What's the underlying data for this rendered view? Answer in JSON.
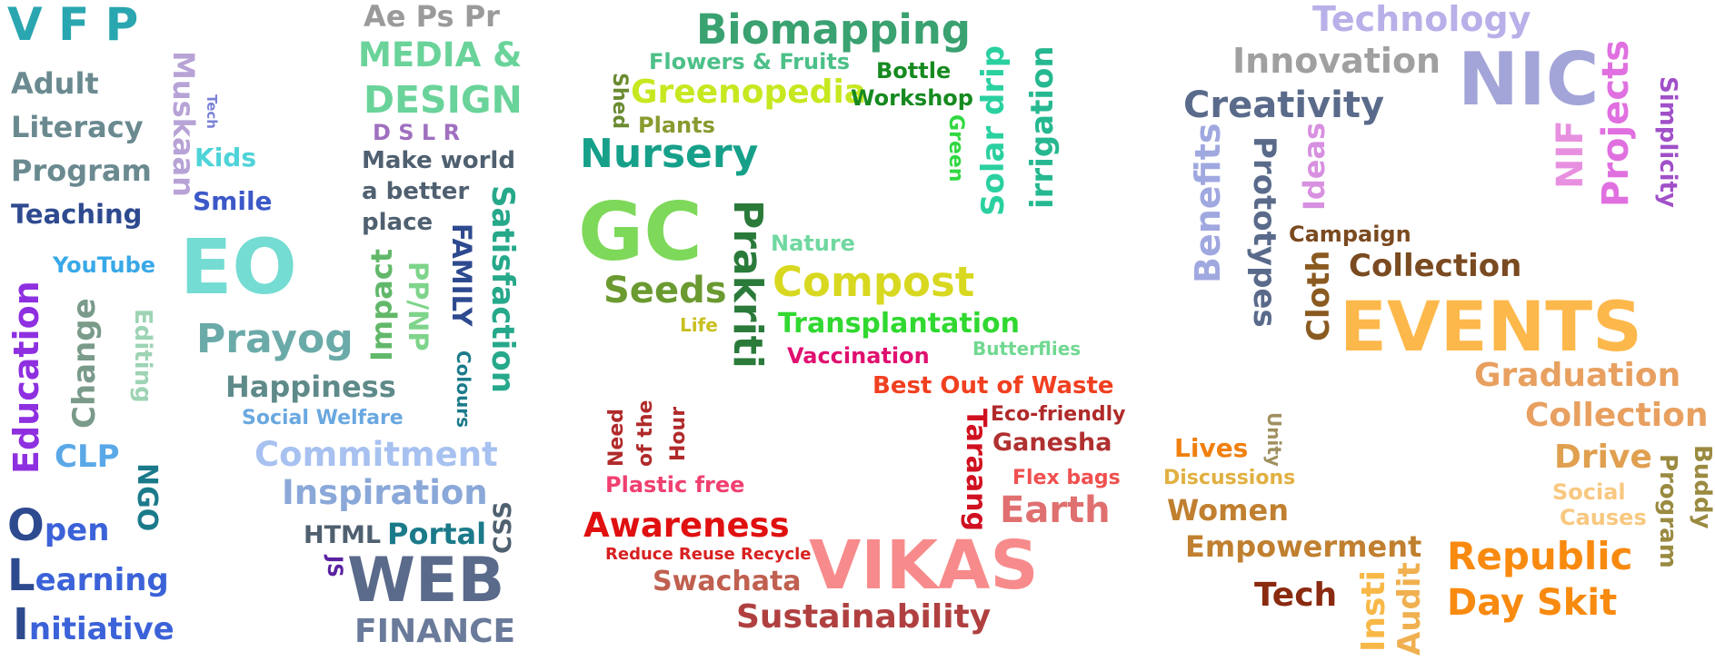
{
  "clusters": {
    "vfp": {
      "vfp": "V F P",
      "adult": "Adult",
      "literacy": "Literacy",
      "program": "Program",
      "teaching": "Teaching",
      "muskaan": "Muskaan",
      "tech": "Tech",
      "kids": "Kids",
      "smile": "Smile",
      "eo": "EO",
      "youtube": "YouTube",
      "education": "Education",
      "change": "Change",
      "editing": "Editing",
      "clp": "CLP",
      "prayog": "Prayog",
      "happiness": "Happiness",
      "social_welfare": "Social Welfare",
      "ngo": "NGO",
      "open_o": "O",
      "open_rest": "pen",
      "learning_l": "L",
      "learning_rest": "earning",
      "initiative_i": "I",
      "initiative_rest": "nitiative"
    },
    "media": {
      "apps": "Ae Ps Pr",
      "media_line1": "MEDIA &",
      "media_line2": "DESIGN",
      "dslr": "D S L R",
      "make_world_1": "Make world",
      "make_world_2": "a better",
      "make_world_3": "place",
      "impact": "Impact",
      "ppnp": "PP/NP",
      "family": "FAMILY",
      "satisfaction": "Satisfaction",
      "colours": "Colours",
      "commitment": "Commitment",
      "inspiration": "Inspiration",
      "html": "HTML",
      "portal": "Portal",
      "css": "CSS",
      "js": "JS",
      "web": "WEB",
      "finance": "FINANCE"
    },
    "gc": {
      "biomapping": "Biomapping",
      "flowers_fruits": "Flowers & Fruits",
      "shed": "Shed",
      "greenopedia": "Greenopedia",
      "bottle": "Bottle",
      "workshop": "Workshop",
      "plants": "Plants",
      "nursery": "Nursery",
      "green": "Green",
      "solar_drip": "Solar drip",
      "irrigation": "irrigation",
      "gc": "GC",
      "prakriti": "Prakriti",
      "nature": "Nature",
      "seeds": "Seeds",
      "compost": "Compost",
      "life": "Life",
      "transplantation": "Transplantation",
      "vaccination": "Vaccination",
      "butterflies": "Butterflies"
    },
    "vikas": {
      "best_out_of_waste": "Best Out of Waste",
      "need": "Need",
      "of_the": "of the",
      "hour": "Hour",
      "taraang": "Taraang",
      "eco_friendly": "Eco-friendly",
      "ganesha": "Ganesha",
      "plastic_free": "Plastic free",
      "flex_bags": "Flex bags",
      "earth": "Earth",
      "awareness": "Awareness",
      "reduce_reuse_recycle": "Reduce Reuse Recycle",
      "vikas": "VIKAS",
      "swachata": "Swachata",
      "sustainability": "Sustainability"
    },
    "nic": {
      "technology": "Technology",
      "innovation": "Innovation",
      "nic": "NIC",
      "creativity": "Creativity",
      "nif": "NIF",
      "projects": "Projects",
      "simplicity": "Simplicity",
      "benefits": "Benefits",
      "prototypes": "Prototypes",
      "ideas": "Ideas",
      "campaign": "Campaign",
      "cloth": "Cloth",
      "collection": "Collection",
      "events": "EVENTS"
    },
    "events": {
      "graduation": "Graduation",
      "collection": "Collection",
      "unity": "Unity",
      "lives": "Lives",
      "drive": "Drive",
      "buddy": "Buddy",
      "program": "Program",
      "discussions": "Discussions",
      "social": "Social",
      "causes": "Causes",
      "women": "Women",
      "empowerment": "Empowerment",
      "republic": "Republic",
      "day_skit": "Day Skit",
      "tech": "Tech",
      "insti": "Insti",
      "audit": "Audit"
    }
  },
  "colors": {
    "teal": "#2aa6b0",
    "grey_blue": "#6a8a90",
    "navy": "#2e4a8f",
    "lavender": "#b7a3d6",
    "cyan": "#4ed3d8",
    "eo": "#74dcd2",
    "purple": "#8e2fe0",
    "green_media": "#6ad39a",
    "biomapping": "#3aa170",
    "vikas": "#f78b8b",
    "nic": "#a3a4d8",
    "events": "#fdb84b"
  }
}
